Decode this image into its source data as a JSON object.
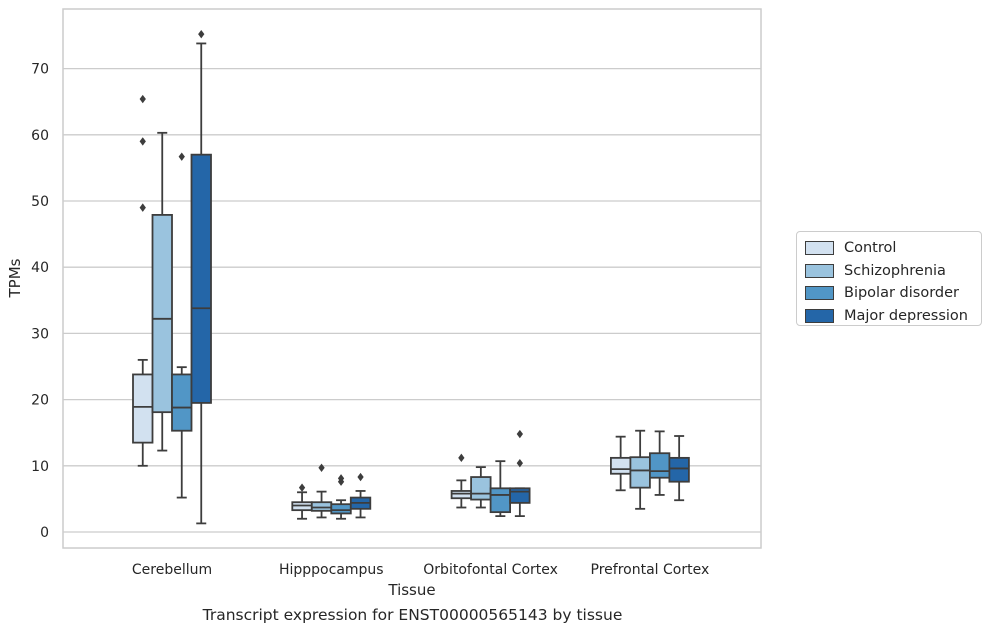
{
  "chart_data": {
    "type": "boxplot",
    "caption": "Transcript expression for ENST00000565143 by tissue",
    "xlabel": "Tissue",
    "ylabel": "TPMs",
    "ylim": [
      -2.3,
      79.5
    ],
    "yticks": [
      0,
      10,
      20,
      30,
      40,
      50,
      60,
      70
    ],
    "grid": "horizontal",
    "legend_position": "right",
    "categories": [
      "Cerebellum",
      "Hipppocampus",
      "Orbitofontal Cortex",
      "Prefrontal Cortex"
    ],
    "series": [
      {
        "name": "Control",
        "color": "#d2e1f0",
        "boxes": [
          {
            "whislo": 10.0,
            "q1": 13.5,
            "med": 18.9,
            "q3": 23.8,
            "whishi": 26.0,
            "fliers": [
              49.0,
              59.0,
              65.4
            ]
          },
          {
            "whislo": 2.0,
            "q1": 3.3,
            "med": 4.0,
            "q3": 4.5,
            "whishi": 6.0,
            "fliers": [
              6.7
            ]
          },
          {
            "whislo": 3.7,
            "q1": 5.1,
            "med": 5.8,
            "q3": 6.2,
            "whishi": 7.8,
            "fliers": [
              11.2
            ]
          },
          {
            "whislo": 6.3,
            "q1": 8.8,
            "med": 9.5,
            "q3": 11.2,
            "whishi": 14.4,
            "fliers": []
          }
        ]
      },
      {
        "name": "Schizophrenia",
        "color": "#9ac3de",
        "boxes": [
          {
            "whislo": 12.3,
            "q1": 18.1,
            "med": 32.2,
            "q3": 47.9,
            "whishi": 60.3,
            "fliers": []
          },
          {
            "whislo": 2.2,
            "q1": 3.2,
            "med": 3.7,
            "q3": 4.5,
            "whishi": 6.1,
            "fliers": [
              9.7
            ]
          },
          {
            "whislo": 3.7,
            "q1": 4.9,
            "med": 5.8,
            "q3": 8.3,
            "whishi": 9.8,
            "fliers": []
          },
          {
            "whislo": 3.5,
            "q1": 6.7,
            "med": 9.3,
            "q3": 11.3,
            "whishi": 15.3,
            "fliers": []
          }
        ]
      },
      {
        "name": "Bipolar disorder",
        "color": "#5196c6",
        "boxes": [
          {
            "whislo": 5.2,
            "q1": 15.3,
            "med": 18.8,
            "q3": 23.8,
            "whishi": 24.9,
            "fliers": [
              56.7
            ]
          },
          {
            "whislo": 2.0,
            "q1": 2.8,
            "med": 3.3,
            "q3": 4.2,
            "whishi": 4.8,
            "fliers": [
              7.6,
              8.1
            ]
          },
          {
            "whislo": 2.4,
            "q1": 3.0,
            "med": 5.6,
            "q3": 6.6,
            "whishi": 10.7,
            "fliers": []
          },
          {
            "whislo": 5.6,
            "q1": 8.2,
            "med": 9.2,
            "q3": 11.9,
            "whishi": 15.2,
            "fliers": []
          }
        ]
      },
      {
        "name": "Major depression",
        "color": "#2466a8",
        "boxes": [
          {
            "whislo": 1.3,
            "q1": 19.5,
            "med": 33.8,
            "q3": 57.0,
            "whishi": 73.8,
            "fliers": [
              75.2
            ]
          },
          {
            "whislo": 2.2,
            "q1": 3.5,
            "med": 4.4,
            "q3": 5.2,
            "whishi": 6.2,
            "fliers": [
              8.3
            ]
          },
          {
            "whislo": 2.4,
            "q1": 4.4,
            "med": 6.1,
            "q3": 6.6,
            "whishi": 6.6,
            "fliers": [
              10.4,
              14.8
            ]
          },
          {
            "whislo": 4.8,
            "q1": 7.6,
            "med": 9.6,
            "q3": 11.2,
            "whishi": 14.5,
            "fliers": []
          }
        ]
      }
    ]
  }
}
